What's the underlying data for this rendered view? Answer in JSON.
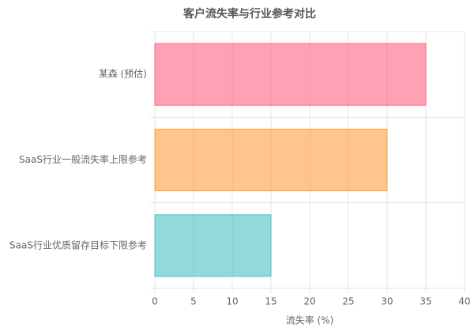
{
  "chart_data": {
    "type": "hbar",
    "title": "客户流失率与行业参考对比",
    "categories": [
      "某森 (预估)",
      "SaaS行业一般流失率上限参考",
      "SaaS行业优质留存目标下限参考"
    ],
    "values": [
      35,
      30,
      15
    ],
    "colors": [
      "#ff6384",
      "#ff9f40",
      "#4bc0c0"
    ],
    "x_label": "流失率 (%)",
    "xlim": [
      0,
      40
    ],
    "xticks": [
      0,
      5,
      10,
      15,
      20,
      25,
      30,
      35,
      40
    ],
    "grid": true
  }
}
